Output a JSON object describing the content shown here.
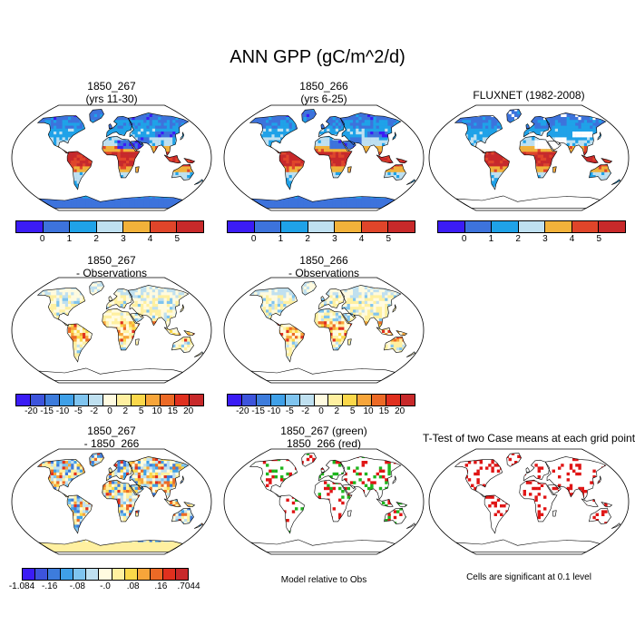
{
  "title": "ANN GPP (gC/m^2/d)",
  "colors": {
    "abs": [
      "#3b1cf5",
      "#3d73dc",
      "#1fa2e8",
      "#bfe0f0",
      "#f2b23a",
      "#e0452a",
      "#c8292a"
    ],
    "diff": [
      "#3b1cf5",
      "#3d54dc",
      "#3d7cdc",
      "#3fa0e8",
      "#7fc4ef",
      "#bfe0f0",
      "#fffbe0",
      "#fff0a0",
      "#fbd84a",
      "#f7a53a",
      "#ec6a26",
      "#e0301e",
      "#c8292a"
    ],
    "land_base": "#f7f0b0",
    "ocean": "#ffffff",
    "green": "#1fb51f",
    "red": "#e01515"
  },
  "panels": [
    {
      "title": "1850_267",
      "subtitle": "(yrs 11-30)",
      "type": "abs",
      "antarctica": true
    },
    {
      "title": "1850_266",
      "subtitle": "(yrs 6-25)",
      "type": "abs",
      "antarctica": true
    },
    {
      "title": "FLUXNET (1982-2008)",
      "subtitle": "",
      "type": "abs",
      "antarctica": false
    },
    {
      "title": "1850_267",
      "subtitle": "- Observations",
      "type": "diff",
      "antarctica": false
    },
    {
      "title": "1850_266",
      "subtitle": "- Observations",
      "type": "diff",
      "antarctica": false
    },
    {
      "title": "1850_267",
      "subtitle": "- 1850_266",
      "type": "diff2",
      "antarctica": true
    },
    {
      "title": "1850_267 (green)",
      "subtitle": "1850_266 (red)",
      "type": "gr",
      "antarctica": false
    },
    {
      "title": "T-Test of two Case means at each grid point",
      "subtitle": "",
      "type": "red",
      "antarctica": false
    }
  ],
  "colorbars": {
    "abs_ticks": [
      "0",
      "1",
      "2",
      "3",
      "4",
      "5"
    ],
    "diff_ticks": [
      "-20",
      "-15",
      "-10",
      "-5",
      "-2",
      "0",
      "2",
      "5",
      "10",
      "15",
      "20"
    ],
    "diff2_ticks": [
      "-1.084",
      "-.16",
      "-.08",
      "-.0",
      ".08",
      ".16",
      ".7044"
    ]
  },
  "notes": {
    "model_rel": "Model relative to Obs",
    "significance": "Cells are significant at 0.1 level"
  }
}
